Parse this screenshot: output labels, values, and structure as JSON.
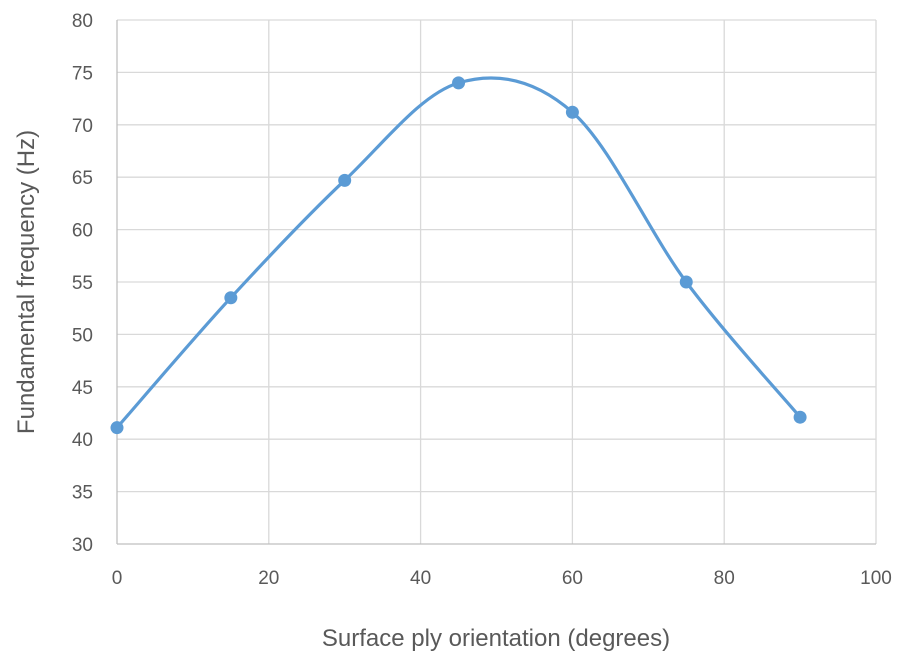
{
  "chart_data": {
    "type": "line",
    "smooth": true,
    "markers": "circle",
    "grid": true,
    "legend": "none",
    "title": "",
    "xlabel": "Surface ply orientation (degrees)",
    "ylabel": "Fundamental frequency (Hz)",
    "xlim": [
      0,
      100
    ],
    "ylim": [
      30,
      80
    ],
    "x_ticks": [
      0,
      20,
      40,
      60,
      80,
      100
    ],
    "y_ticks": [
      30,
      35,
      40,
      45,
      50,
      55,
      60,
      65,
      70,
      75,
      80
    ],
    "series": [
      {
        "color": "#5b9bd5",
        "x": [
          0,
          15,
          30,
          45,
          60,
          75,
          90
        ],
        "y": [
          41.1,
          53.5,
          64.7,
          74.0,
          71.2,
          55.0,
          42.1
        ]
      }
    ]
  }
}
